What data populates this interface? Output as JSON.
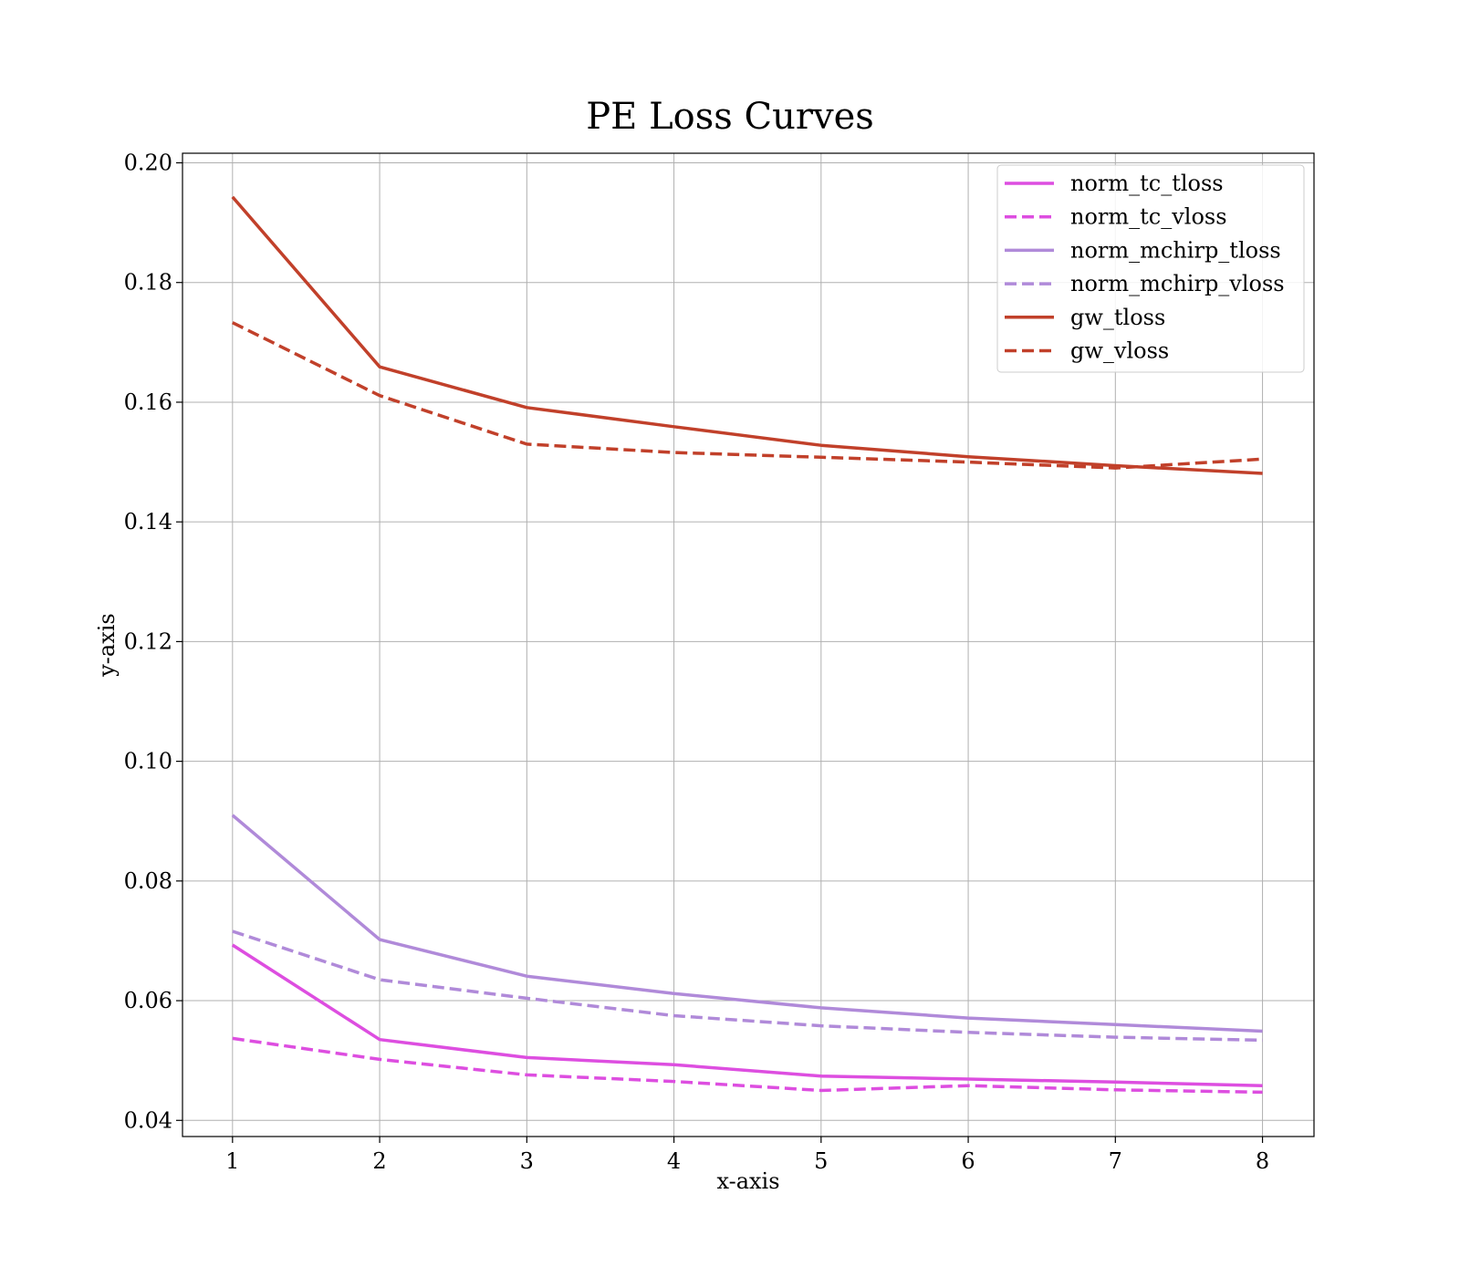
{
  "chart_data": {
    "type": "line",
    "title": "PE Loss Curves",
    "xlabel": "x-axis",
    "ylabel": "y-axis",
    "xlim": [
      0.66,
      8.35
    ],
    "ylim": [
      0.0373,
      0.2016
    ],
    "x_ticks": [
      1,
      2,
      3,
      4,
      5,
      6,
      7,
      8
    ],
    "x_tick_labels": [
      "1",
      "2",
      "3",
      "4",
      "5",
      "6",
      "7",
      "8"
    ],
    "y_ticks": [
      0.04,
      0.06,
      0.08,
      0.1,
      0.12,
      0.14,
      0.16,
      0.18,
      0.2
    ],
    "y_tick_labels": [
      "0.04",
      "0.06",
      "0.08",
      "0.10",
      "0.12",
      "0.14",
      "0.16",
      "0.18",
      "0.20"
    ],
    "grid": true,
    "legend_position": "top-right",
    "x": [
      1,
      2,
      3,
      4,
      5,
      6,
      7,
      8
    ],
    "series": [
      {
        "name": "norm_tc_tloss",
        "color": "#dd4ee0",
        "style": "solid",
        "values": [
          0.0693,
          0.0535,
          0.0505,
          0.0493,
          0.0474,
          0.0469,
          0.0464,
          0.0458
        ]
      },
      {
        "name": "norm_tc_vloss",
        "color": "#dd4ee0",
        "style": "dashed",
        "values": [
          0.0537,
          0.0502,
          0.0476,
          0.0465,
          0.045,
          0.0458,
          0.0451,
          0.0447
        ]
      },
      {
        "name": "norm_mchirp_tloss",
        "color": "#b08ad9",
        "style": "solid",
        "values": [
          0.091,
          0.0702,
          0.0641,
          0.0612,
          0.0588,
          0.0571,
          0.056,
          0.0549
        ]
      },
      {
        "name": "norm_mchirp_vloss",
        "color": "#b08ad9",
        "style": "dashed",
        "values": [
          0.0716,
          0.0635,
          0.0604,
          0.0575,
          0.0558,
          0.0547,
          0.0539,
          0.0534
        ]
      },
      {
        "name": "gw_tloss",
        "color": "#c1402a",
        "style": "solid",
        "values": [
          0.1943,
          0.1659,
          0.1591,
          0.1559,
          0.1528,
          0.1509,
          0.1494,
          0.1481
        ]
      },
      {
        "name": "gw_vloss",
        "color": "#c1402a",
        "style": "dashed",
        "values": [
          0.1733,
          0.1611,
          0.153,
          0.1516,
          0.1508,
          0.15,
          0.149,
          0.1505
        ]
      }
    ]
  }
}
